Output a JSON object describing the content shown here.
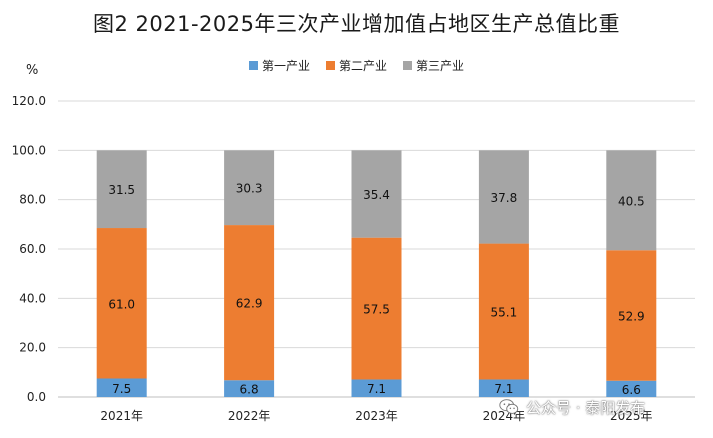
{
  "chart_data": {
    "type": "bar",
    "stacked": true,
    "title": "图2  2021-2025年三次产业增加值占地区生产总值比重",
    "ylabel": "%",
    "ylim": [
      0,
      120
    ],
    "yticks": [
      "0.0",
      "20.0",
      "40.0",
      "60.0",
      "80.0",
      "100.0",
      "120.0"
    ],
    "grid": true,
    "legend_position": "top",
    "categories": [
      "2021年",
      "2022年",
      "2023年",
      "2024年",
      "2025年"
    ],
    "series": [
      {
        "name": "第一产业",
        "color": "#5b9bd5",
        "values": [
          7.5,
          6.8,
          7.1,
          7.1,
          6.6
        ],
        "labels": [
          "7.5",
          "6.8",
          "7.1",
          "7.1",
          "6.6"
        ]
      },
      {
        "name": "第二产业",
        "color": "#ed7d31",
        "values": [
          61.0,
          62.9,
          57.5,
          55.1,
          52.9
        ],
        "labels": [
          "61.0",
          "62.9",
          "57.5",
          "55.1",
          "52.9"
        ]
      },
      {
        "name": "第三产业",
        "color": "#a5a5a5",
        "values": [
          31.5,
          30.3,
          35.4,
          37.8,
          40.5
        ],
        "labels": [
          "31.5",
          "30.3",
          "35.4",
          "37.8",
          "40.5"
        ]
      }
    ]
  },
  "watermark": {
    "text": "公众号 · 泰阳发布",
    "icon": "wechat-icon"
  }
}
